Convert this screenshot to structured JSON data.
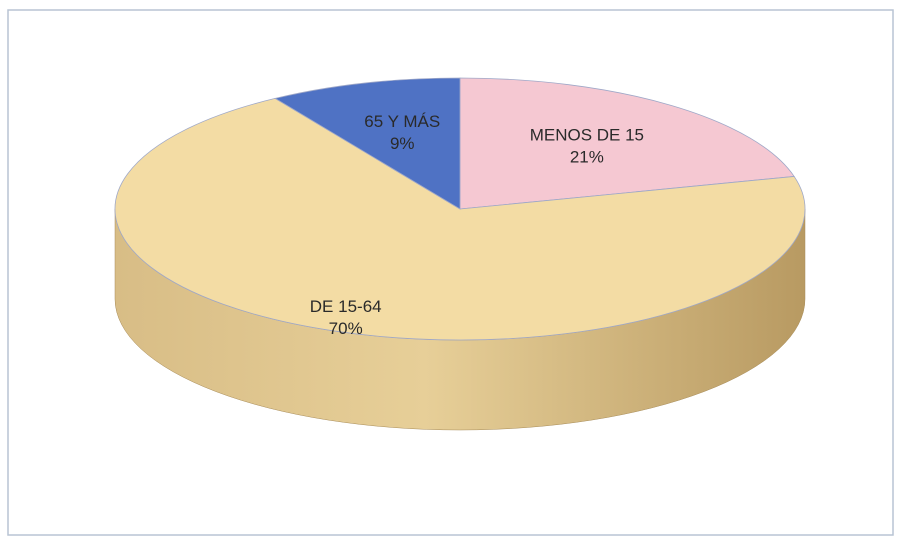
{
  "chart_data": {
    "type": "pie",
    "categories": [
      "MENOS DE 15",
      "DE 15-64",
      "65 Y MÁS"
    ],
    "values": [
      21,
      70,
      9
    ],
    "value_labels": [
      "21%",
      "70%",
      "9%"
    ],
    "colors": [
      "#f5c8d2",
      "#f3dca4",
      "#4f72c4"
    ]
  }
}
